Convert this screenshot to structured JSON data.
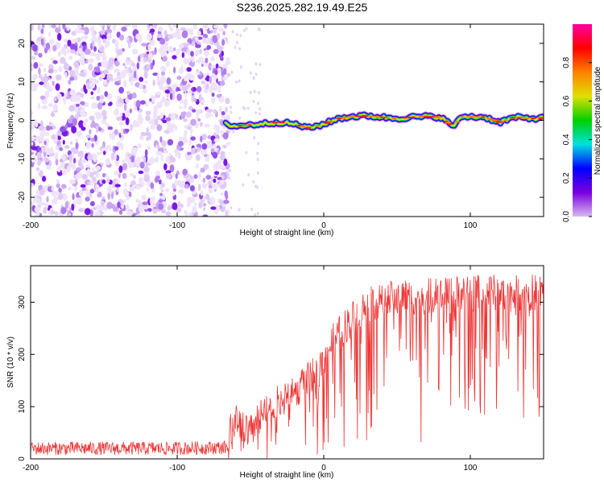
{
  "figure": {
    "title": "S236.2025.282.19.49.E25"
  },
  "chart_data": [
    {
      "type": "heatmap",
      "xlabel": "Height of straight line (km)",
      "ylabel": "Frequency (Hz)",
      "xlim": [
        -200,
        150
      ],
      "ylim": [
        -25,
        25
      ],
      "xticks": [
        -200,
        -100,
        0,
        100
      ],
      "xtick_labels": [
        "-200",
        "-100",
        "0",
        "100"
      ],
      "yticks": [
        -20,
        -10,
        0,
        10,
        20
      ],
      "ytick_labels": [
        "-20",
        "-10",
        "0",
        "10",
        "20"
      ],
      "noise_region_x": [
        -200,
        -65
      ],
      "ridge": {
        "x": [
          -67,
          -60,
          -50,
          -40,
          -30,
          -20,
          -10,
          0,
          10,
          20,
          30,
          40,
          50,
          60,
          70,
          80,
          88,
          95,
          110,
          120,
          130,
          140,
          150
        ],
        "y": [
          -1,
          -1.5,
          -1.2,
          -0.8,
          -0.5,
          -1,
          -2,
          -1,
          0.5,
          1,
          1.2,
          0.8,
          0.5,
          0.8,
          1,
          0.8,
          -1.5,
          1,
          0.8,
          -0.5,
          0.8,
          0.5,
          0.6
        ]
      },
      "colorbar": {
        "label": "Normalized spectral amplitude",
        "range": [
          0,
          1
        ],
        "ticks": [
          0.0,
          0.2,
          0.4,
          0.6,
          0.8
        ],
        "tick_labels": [
          "0.0",
          "0.2",
          "0.4",
          "0.6",
          "0.8"
        ],
        "colors": [
          "#d8b8f0",
          "#7a00e0",
          "#0000ff",
          "#00e0e0",
          "#00d000",
          "#e0e000",
          "#ff8000",
          "#ff0000",
          "#ff00a0"
        ]
      },
      "grid": false
    },
    {
      "type": "line",
      "xlabel": "Height of straight line (km)",
      "ylabel": "SNR (10 * v/v)",
      "xlim": [
        -200,
        150
      ],
      "ylim": [
        0,
        370
      ],
      "xticks": [
        -200,
        -100,
        0,
        100
      ],
      "xtick_labels": [
        "-200",
        "-100",
        "0",
        "100"
      ],
      "yticks": [
        0,
        100,
        200,
        300
      ],
      "ytick_labels": [
        "0",
        "100",
        "200",
        "300"
      ],
      "series": [
        {
          "color": "#ee3333",
          "x": [
            -200,
            -150,
            -100,
            -65,
            -62,
            -55,
            -45,
            -35,
            -25,
            -15,
            -5,
            5,
            15,
            25,
            35,
            45,
            55,
            65,
            75,
            85,
            95,
            105,
            115,
            125,
            135,
            150
          ],
          "y": [
            20,
            20,
            20,
            22,
            80,
            55,
            75,
            95,
            125,
            140,
            165,
            220,
            255,
            285,
            300,
            305,
            310,
            310,
            312,
            312,
            318,
            318,
            320,
            315,
            318,
            320
          ]
        }
      ],
      "grid": false
    }
  ]
}
